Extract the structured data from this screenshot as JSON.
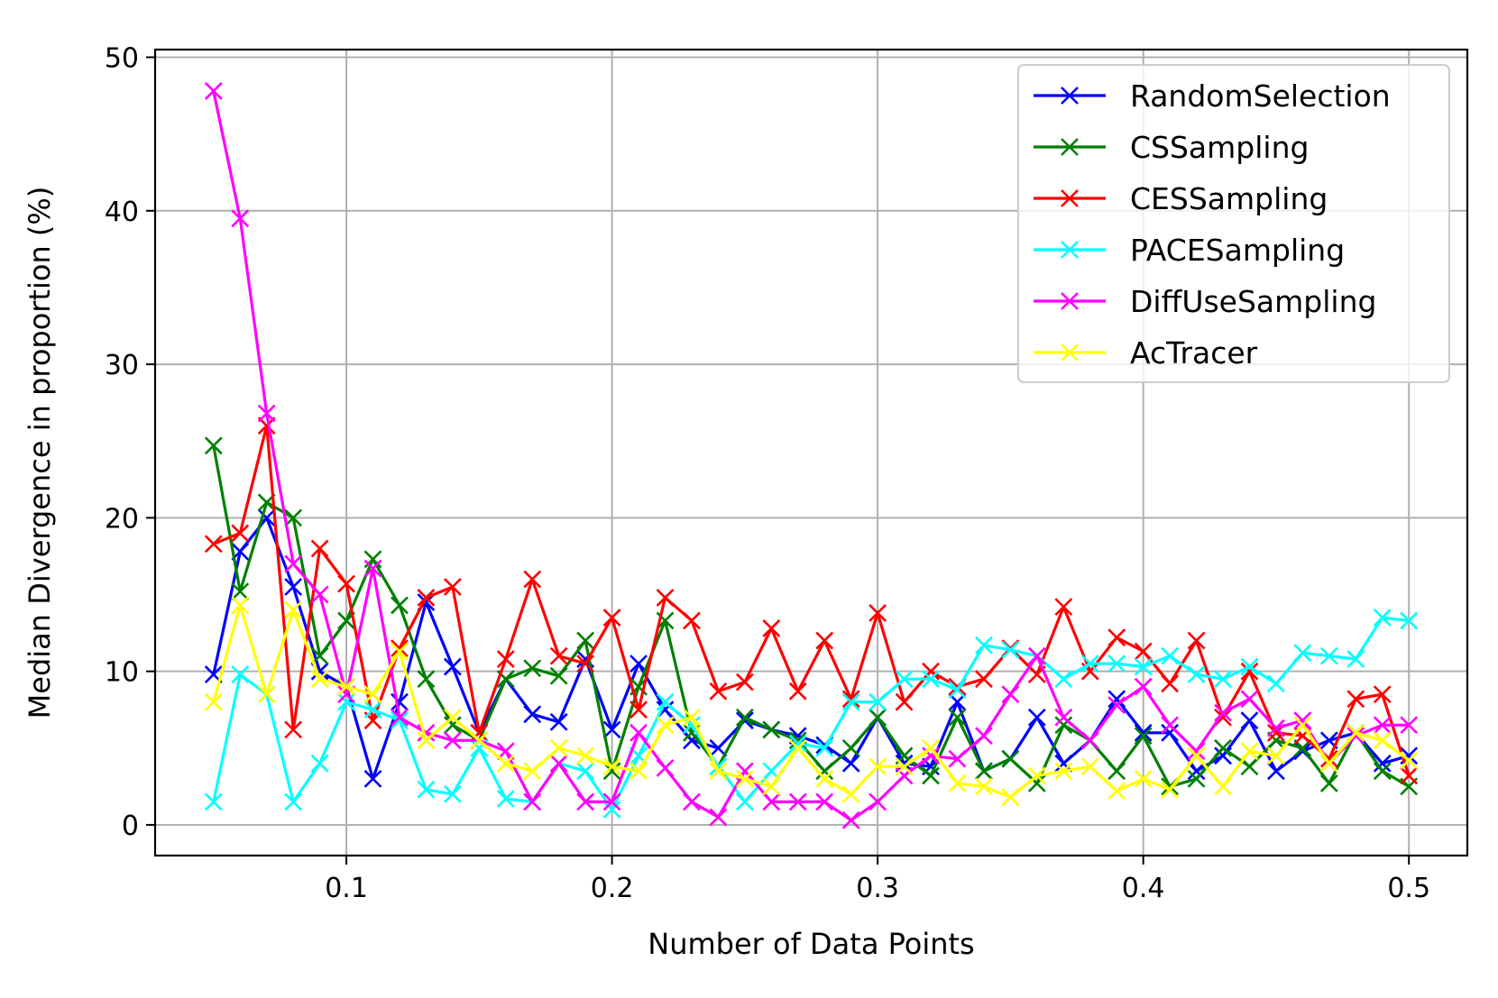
{
  "chart_data": {
    "type": "line",
    "xlabel": "Number of Data Points",
    "ylabel": "Median Divergence in proportion (%)",
    "xlim": [
      0.028,
      0.522
    ],
    "ylim": [
      -2,
      50.5
    ],
    "xticks": [
      0.1,
      0.2,
      0.3,
      0.4,
      0.5
    ],
    "xtick_labels": [
      "0.1",
      "0.2",
      "0.3",
      "0.4",
      "0.5"
    ],
    "yticks": [
      0,
      10,
      20,
      30,
      40,
      50
    ],
    "ytick_labels": [
      "0",
      "10",
      "20",
      "30",
      "40",
      "50"
    ],
    "grid": true,
    "legend_position": "top-right",
    "marker": "x",
    "x": [
      0.05,
      0.06,
      0.07,
      0.08,
      0.09,
      0.1,
      0.11,
      0.12,
      0.13,
      0.14,
      0.15,
      0.16,
      0.17,
      0.18,
      0.19,
      0.2,
      0.21,
      0.22,
      0.23,
      0.24,
      0.25,
      0.26,
      0.27,
      0.28,
      0.29,
      0.3,
      0.31,
      0.32,
      0.33,
      0.34,
      0.35,
      0.36,
      0.37,
      0.38,
      0.39,
      0.4,
      0.41,
      0.42,
      0.43,
      0.44,
      0.45,
      0.46,
      0.47,
      0.48,
      0.49,
      0.5
    ],
    "series": [
      {
        "name": "RandomSelection",
        "color": "#0000ff",
        "values": [
          9.8,
          17.8,
          20.0,
          15.5,
          10.0,
          9.0,
          3.0,
          8.0,
          14.5,
          10.3,
          6.0,
          9.5,
          7.2,
          6.7,
          10.8,
          6.2,
          10.5,
          7.5,
          5.5,
          5.0,
          6.8,
          6.2,
          5.8,
          5.2,
          4.0,
          7.0,
          4.0,
          3.8,
          8.0,
          3.5,
          4.3,
          7.0,
          4.0,
          5.5,
          8.2,
          6.0,
          6.0,
          3.5,
          4.5,
          6.8,
          3.5,
          4.8,
          5.5,
          6.0,
          4.0,
          4.5
        ]
      },
      {
        "name": "CSSampling",
        "color": "#008000",
        "values": [
          24.7,
          15.2,
          21.0,
          20.0,
          11.0,
          13.3,
          17.3,
          14.3,
          9.5,
          6.5,
          5.5,
          9.5,
          10.2,
          9.7,
          12.0,
          3.5,
          9.0,
          13.3,
          6.0,
          3.8,
          7.0,
          6.2,
          5.5,
          3.5,
          5.0,
          7.0,
          4.5,
          3.2,
          7.0,
          3.5,
          4.3,
          2.7,
          6.5,
          5.5,
          3.5,
          5.8,
          2.5,
          3.0,
          5.0,
          3.8,
          5.5,
          5.0,
          2.7,
          6.0,
          3.5,
          2.5
        ]
      },
      {
        "name": "CESSampling",
        "color": "#ff0000",
        "values": [
          18.3,
          19.0,
          26.0,
          6.2,
          18.0,
          15.7,
          6.8,
          11.5,
          14.8,
          15.5,
          6.0,
          10.8,
          16.0,
          11.0,
          10.5,
          13.5,
          7.5,
          14.8,
          13.3,
          8.7,
          9.3,
          12.8,
          8.7,
          12.0,
          8.2,
          13.8,
          8.0,
          10.0,
          9.0,
          9.5,
          11.5,
          9.8,
          14.2,
          10.0,
          12.2,
          11.3,
          9.2,
          12.0,
          7.0,
          10.0,
          6.0,
          5.8,
          4.3,
          8.2,
          8.5,
          3.2
        ]
      },
      {
        "name": "PACESampling",
        "color": "#00ffff",
        "values": [
          1.5,
          9.8,
          8.5,
          1.5,
          4.0,
          8.0,
          7.5,
          6.8,
          2.3,
          2.0,
          5.0,
          1.7,
          1.5,
          4.0,
          3.5,
          1.0,
          4.5,
          8.0,
          6.5,
          3.8,
          1.5,
          3.5,
          5.3,
          5.0,
          8.0,
          8.0,
          9.5,
          9.5,
          8.8,
          11.7,
          11.4,
          11.0,
          9.5,
          10.5,
          10.5,
          10.3,
          11.0,
          9.8,
          9.5,
          10.3,
          9.2,
          11.2,
          11.0,
          10.8,
          13.5,
          13.3
        ]
      },
      {
        "name": "DiffUseSampling",
        "color": "#ff00ff",
        "values": [
          47.8,
          39.5,
          26.8,
          17.0,
          15.0,
          8.5,
          16.7,
          7.0,
          6.0,
          5.5,
          5.5,
          4.8,
          1.5,
          4.0,
          1.5,
          1.5,
          6.0,
          3.7,
          1.5,
          0.5,
          3.5,
          1.5,
          1.5,
          1.5,
          0.3,
          1.5,
          3.2,
          4.5,
          4.3,
          5.8,
          8.5,
          11.0,
          7.0,
          5.5,
          7.8,
          9.0,
          6.5,
          4.8,
          7.3,
          8.2,
          6.3,
          6.8,
          4.0,
          5.8,
          6.5,
          6.5
        ]
      },
      {
        "name": "AcTracer",
        "color": "#ffff00",
        "values": [
          8.0,
          14.3,
          8.5,
          14.0,
          9.5,
          9.0,
          8.5,
          11.3,
          5.5,
          7.0,
          5.5,
          4.0,
          3.5,
          5.0,
          4.5,
          3.8,
          3.5,
          6.5,
          7.0,
          3.5,
          3.0,
          2.5,
          5.0,
          3.0,
          2.0,
          3.8,
          3.8,
          5.0,
          2.7,
          2.5,
          1.8,
          3.2,
          3.5,
          3.8,
          2.2,
          3.0,
          2.3,
          4.5,
          2.5,
          4.8,
          4.5,
          6.5,
          4.0,
          6.0,
          5.5,
          4.2
        ]
      }
    ]
  }
}
